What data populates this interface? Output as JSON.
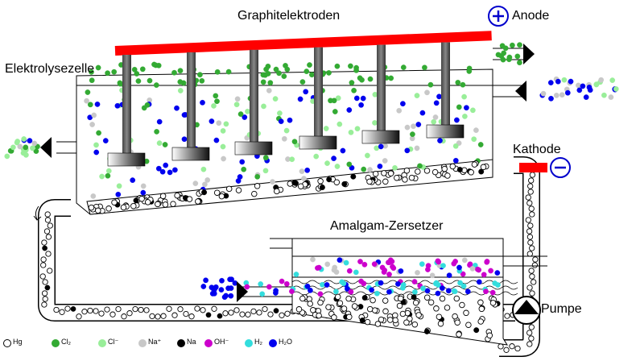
{
  "labels": {
    "electrodes": "Graphitelektroden",
    "anode": "Anode",
    "cell": "Elektrolysezelle",
    "cathode": "Kathode",
    "decomposer": "Amalgam-Zersetzer",
    "pump": "Pumpe"
  },
  "symbols": {
    "plus": "+",
    "minus": "−"
  },
  "legend": [
    {
      "key": "hg",
      "label": "Hg",
      "color": "#ffffff",
      "border": "#000000"
    },
    {
      "key": "cl2",
      "label": "Cl₂",
      "color": "#33aa33",
      "border": "#33aa33"
    },
    {
      "key": "cl",
      "label": "Cl⁻",
      "color": "#99ee99",
      "border": "#99ee99"
    },
    {
      "key": "na_plus",
      "label": "Na⁺",
      "color": "#c8c8c8",
      "border": "#c8c8c8"
    },
    {
      "key": "na",
      "label": "Na",
      "color": "#000000",
      "border": "#000000"
    },
    {
      "key": "oh",
      "label": "OH⁻",
      "color": "#cc00cc",
      "border": "#cc00cc"
    },
    {
      "key": "h2",
      "label": "H₂",
      "color": "#33dddd",
      "border": "#33dddd"
    },
    {
      "key": "h2o",
      "label": "H₂O",
      "color": "#0000ee",
      "border": "#0000ee"
    }
  ],
  "colors": {
    "electrode_bar": "#ff0000",
    "anode_circle": "#0000cc",
    "cathode_circle": "#0000cc"
  },
  "icons": [
    "plus-icon",
    "minus-icon",
    "pump-icon",
    "arrow-icon"
  ]
}
